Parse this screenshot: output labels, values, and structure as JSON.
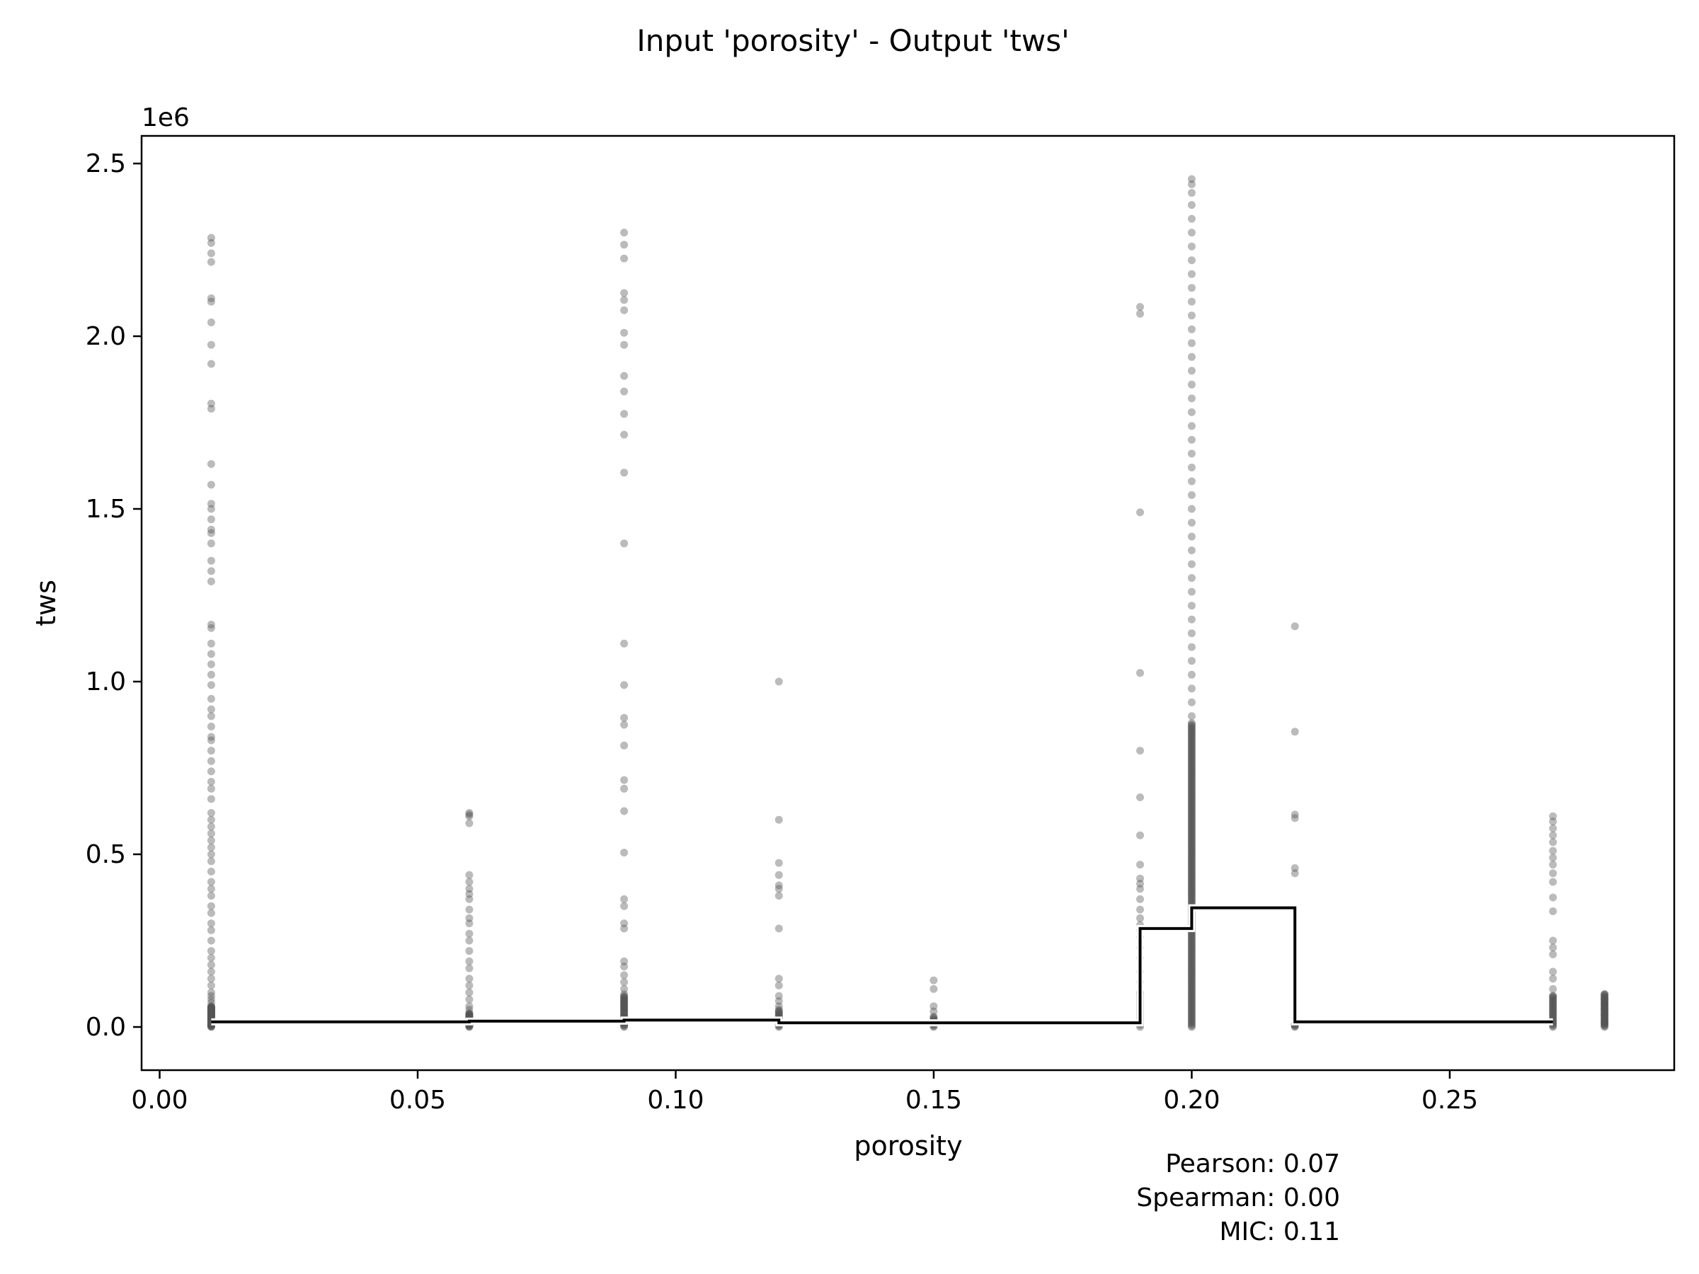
{
  "chart_data": {
    "type": "scatter",
    "title": "Input 'porosity' - Output 'tws'",
    "xlabel": "porosity",
    "ylabel": "tws",
    "y_offset_label": "1e6",
    "xlim": [
      -0.0035,
      0.2935
    ],
    "ylim": [
      -125000,
      2580000
    ],
    "x_ticks": [
      0.0,
      0.05,
      0.1,
      0.15,
      0.2,
      0.25
    ],
    "x_tick_labels": [
      "0.00",
      "0.05",
      "0.10",
      "0.15",
      "0.20",
      "0.25"
    ],
    "y_ticks": [
      0,
      500000,
      1000000,
      1500000,
      2000000,
      2500000
    ],
    "y_tick_labels": [
      "0.0",
      "0.5",
      "1.0",
      "1.5",
      "2.0",
      "2.5"
    ],
    "grid": false,
    "legend": "none",
    "point_color": "#555555",
    "line_color": "#000000",
    "scatter_columns": [
      {
        "x": 0.01,
        "dense_max": 60000,
        "dense_count": 60,
        "values": [
          2285000,
          2270000,
          2240000,
          2215000,
          2110000,
          2100000,
          2040000,
          1975000,
          1920000,
          1805000,
          1790000,
          1630000,
          1570000,
          1515000,
          1500000,
          1470000,
          1440000,
          1430000,
          1400000,
          1350000,
          1320000,
          1290000,
          1165000,
          1155000,
          1110000,
          1080000,
          1050000,
          1020000,
          990000,
          950000,
          920000,
          900000,
          870000,
          840000,
          830000,
          800000,
          770000,
          740000,
          710000,
          690000,
          660000,
          620000,
          600000,
          580000,
          560000,
          540000,
          520000,
          500000,
          480000,
          450000,
          420000,
          400000,
          380000,
          350000,
          330000,
          300000,
          280000,
          250000,
          220000,
          200000,
          180000,
          160000,
          140000,
          120000,
          100000,
          90000,
          80000,
          70000
        ]
      },
      {
        "x": 0.06,
        "dense_max": 40000,
        "dense_count": 30,
        "values": [
          620000,
          615000,
          610000,
          590000,
          440000,
          420000,
          400000,
          385000,
          370000,
          340000,
          315000,
          300000,
          270000,
          250000,
          220000,
          190000,
          170000,
          140000,
          120000,
          100000,
          80000,
          60000,
          50000
        ]
      },
      {
        "x": 0.09,
        "dense_max": 90000,
        "dense_count": 40,
        "values": [
          2300000,
          2265000,
          2225000,
          2125000,
          2105000,
          2075000,
          2010000,
          1975000,
          1885000,
          1840000,
          1775000,
          1715000,
          1605000,
          1400000,
          1110000,
          990000,
          895000,
          875000,
          815000,
          715000,
          690000,
          625000,
          505000,
          370000,
          350000,
          300000,
          285000,
          190000,
          175000,
          150000,
          130000,
          110000,
          95000
        ]
      },
      {
        "x": 0.12,
        "dense_max": 50000,
        "dense_count": 20,
        "values": [
          1000000,
          600000,
          475000,
          440000,
          410000,
          400000,
          380000,
          285000,
          140000,
          120000,
          90000,
          75000,
          60000
        ]
      },
      {
        "x": 0.15,
        "dense_max": 30000,
        "dense_count": 12,
        "values": [
          135000,
          110000,
          60000,
          45000
        ]
      },
      {
        "x": 0.19,
        "dense_max": 100000,
        "dense_count": 20,
        "values": [
          2085000,
          2065000,
          1490000,
          1025000,
          800000,
          665000,
          555000,
          470000,
          430000,
          415000,
          400000,
          370000,
          340000,
          315000,
          295000,
          280000,
          260000,
          230000,
          200000,
          160000,
          130000,
          100000
        ]
      },
      {
        "x": 0.2,
        "dense_max": 880000,
        "dense_count": 240,
        "values": [
          2455000,
          2440000,
          2415000,
          2380000,
          2340000,
          2300000,
          2260000,
          2220000,
          2180000,
          2140000,
          2100000,
          2060000,
          2020000,
          1980000,
          1940000,
          1900000,
          1860000,
          1820000,
          1780000,
          1740000,
          1700000,
          1660000,
          1620000,
          1580000,
          1540000,
          1500000,
          1460000,
          1420000,
          1380000,
          1340000,
          1300000,
          1260000,
          1220000,
          1180000,
          1140000,
          1100000,
          1060000,
          1020000,
          980000,
          940000,
          900000
        ]
      },
      {
        "x": 0.22,
        "dense_max": 10000,
        "dense_count": 6,
        "values": [
          1160000,
          855000,
          615000,
          605000,
          460000,
          445000
        ]
      },
      {
        "x": 0.27,
        "dense_max": 90000,
        "dense_count": 30,
        "values": [
          610000,
          595000,
          575000,
          555000,
          535000,
          510000,
          490000,
          470000,
          445000,
          420000,
          375000,
          335000,
          250000,
          230000,
          210000,
          160000,
          140000,
          110000,
          90000
        ]
      },
      {
        "x": 0.28,
        "dense_max": 95000,
        "dense_count": 40,
        "values": [
          95000,
          80000,
          65000,
          50000,
          35000,
          20000,
          10000
        ]
      }
    ],
    "mean_line": [
      [
        0.01,
        15000
      ],
      [
        0.06,
        15000
      ],
      [
        0.06,
        17000
      ],
      [
        0.09,
        17000
      ],
      [
        0.09,
        20000
      ],
      [
        0.12,
        20000
      ],
      [
        0.12,
        12000
      ],
      [
        0.15,
        12000
      ],
      [
        0.19,
        12000
      ],
      [
        0.19,
        285000
      ],
      [
        0.2,
        285000
      ],
      [
        0.2,
        345000
      ],
      [
        0.22,
        345000
      ],
      [
        0.22,
        15000
      ],
      [
        0.27,
        15000
      ]
    ],
    "stats": {
      "pearson": "Pearson: 0.07",
      "spearman": "Spearman: 0.00",
      "mic": "MIC: 0.11"
    }
  }
}
